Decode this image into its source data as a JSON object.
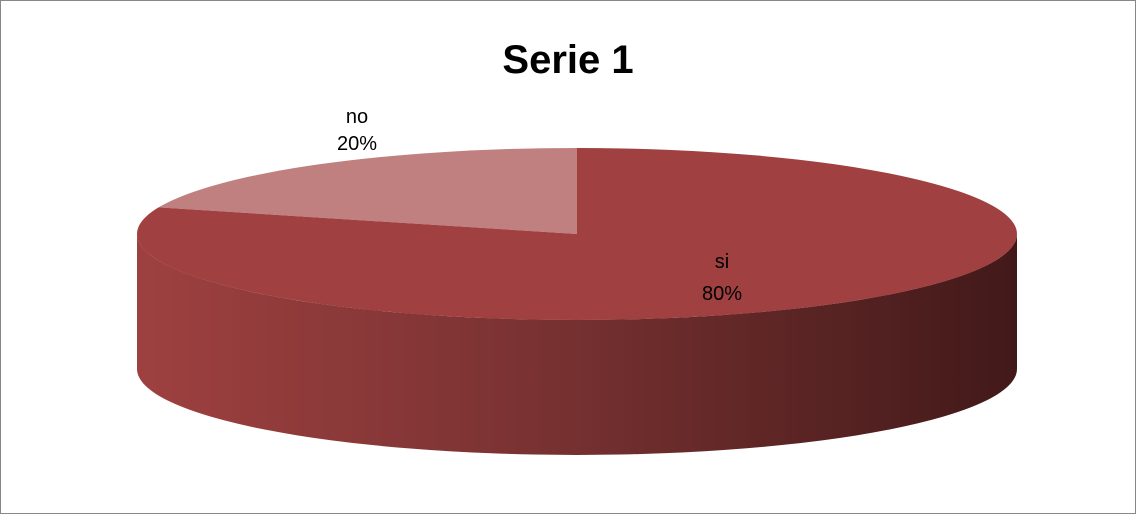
{
  "chart_data": {
    "type": "pie",
    "title": "Serie 1",
    "categories": [
      "no",
      "si"
    ],
    "values": [
      20,
      80
    ],
    "value_labels": [
      "20%",
      "80%"
    ],
    "colors": [
      "#c0807f",
      "#a04040"
    ],
    "style": "3d"
  }
}
